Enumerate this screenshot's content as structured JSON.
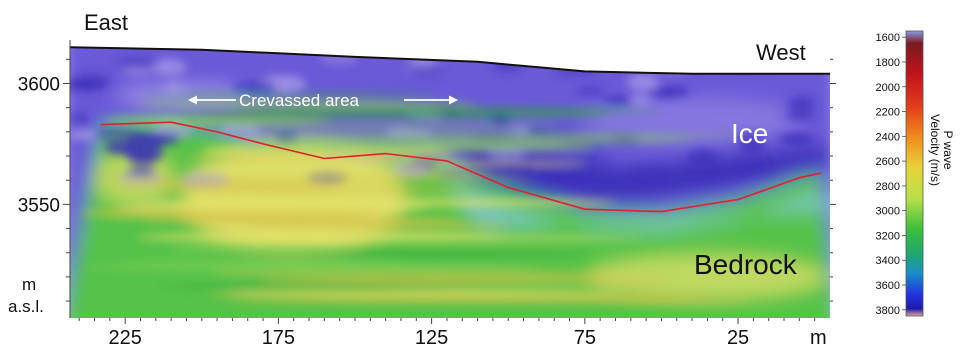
{
  "chart_data": {
    "type": "heatmap",
    "title": "",
    "direction_labels": {
      "left": "East",
      "right": "West"
    },
    "xlabel": "m",
    "xlim": [
      243,
      -5
    ],
    "x_ticks": [
      225,
      175,
      125,
      75,
      25
    ],
    "x_tick_labels": [
      "225",
      "175",
      "125",
      "75",
      "25"
    ],
    "ylabel": "m a.s.l.",
    "ylabel_lines": [
      "m",
      "a.s.l."
    ],
    "ylim": [
      3503,
      3618
    ],
    "y_ticks": [
      3600,
      3550
    ],
    "y_tick_labels": [
      "3600",
      "3550"
    ],
    "annotations": {
      "crevassed": "Crevassed area",
      "ice": "Ice",
      "bedrock": "Bedrock"
    },
    "surface_topography": {
      "x": [
        243,
        200,
        150,
        110,
        75,
        40,
        0,
        -5
      ],
      "y": [
        3615,
        3614,
        3611,
        3609,
        3605,
        3604,
        3604,
        3604
      ]
    },
    "interface_line": {
      "name": "Ice/bedrock interface",
      "color": "#e0202a",
      "x": [
        233,
        210,
        195,
        180,
        160,
        140,
        120,
        100,
        75,
        50,
        25,
        5,
        -2
      ],
      "y": [
        3583,
        3584,
        3580,
        3575,
        3569,
        3571,
        3568,
        3557,
        3548,
        3547,
        3552,
        3561,
        3563
      ]
    },
    "colorbar": {
      "label_lines": [
        "P wave",
        "Velocity (m/s)"
      ],
      "label": "P wave Velocity (m/s)",
      "values": [
        1600,
        1800,
        2000,
        2200,
        2400,
        2600,
        2800,
        3000,
        3200,
        3400,
        3600,
        3800
      ],
      "tick_labels": [
        "1600",
        "1800",
        "2000",
        "2200",
        "2400",
        "2600",
        "2800",
        "3000",
        "3200",
        "3400",
        "3600",
        "3800"
      ],
      "range": [
        1550,
        3850
      ],
      "colors": {
        "1550": "#8a9be8",
        "1650": "#7a1a1f",
        "1900": "#c0141a",
        "2150": "#e23a1b",
        "2400": "#f08a1c",
        "2650": "#e8d23a",
        "2900": "#b8e04a",
        "3150": "#3cbf3a",
        "3350": "#1fa86f",
        "3500": "#1a8fc6",
        "3680": "#2233e0",
        "3790": "#1a1aa8",
        "3850": "#e8a0a0"
      }
    },
    "section_colors": {
      "ice_dark": "#3a2fb8",
      "ice_mid": "#6a5ad8",
      "ice_light": "#a79be8",
      "transition": "#7fc6c8",
      "rock_green": "#56c24a",
      "rock_yellow": "#e3e068",
      "rock_gold": "#d6c24a"
    }
  }
}
